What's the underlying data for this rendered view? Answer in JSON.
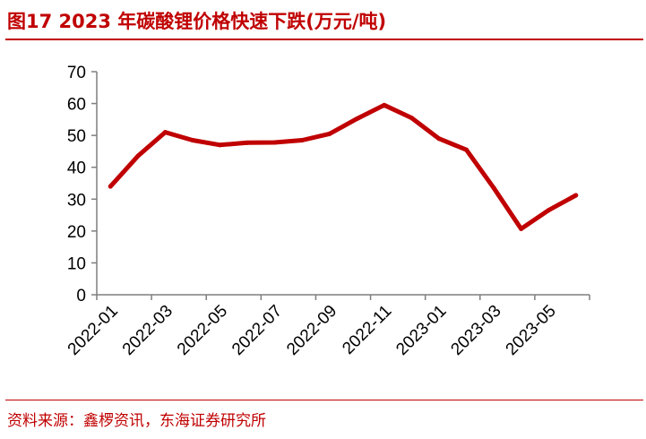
{
  "header": {
    "title": "图17  2023 年碳酸锂价格快速下跌(万元/吨)"
  },
  "footer": {
    "source": "资料来源：鑫椤资讯，东海证券研究所"
  },
  "colors": {
    "accent": "#c00000",
    "series_line": "#c00000"
  },
  "chart_data": {
    "type": "line",
    "title": "2023 年碳酸锂价格快速下跌(万元/吨)",
    "xlabel": "",
    "ylabel": "",
    "ylim": [
      0,
      70
    ],
    "yticks": [
      0,
      10,
      20,
      30,
      40,
      50,
      60,
      70
    ],
    "x_tick_labels": [
      "2022-01",
      "2022-03",
      "2022-05",
      "2022-07",
      "2022-09",
      "2022-11",
      "2023-01",
      "2023-03",
      "2023-05"
    ],
    "x": [
      "2022-01",
      "2022-02",
      "2022-03",
      "2022-04",
      "2022-05",
      "2022-06",
      "2022-07",
      "2022-08",
      "2022-09",
      "2022-10",
      "2022-11",
      "2022-12",
      "2023-01",
      "2023-02",
      "2023-03",
      "2023-04",
      "2023-05",
      "2023-06"
    ],
    "series": [
      {
        "values": [
          34,
          43.5,
          51,
          48.5,
          47,
          47.7,
          47.8,
          48.5,
          50.5,
          55.2,
          59.5,
          55.5,
          49,
          45.5,
          33.5,
          20.7,
          26.5,
          31.2
        ]
      }
    ],
    "grid": false,
    "legend": "none"
  }
}
